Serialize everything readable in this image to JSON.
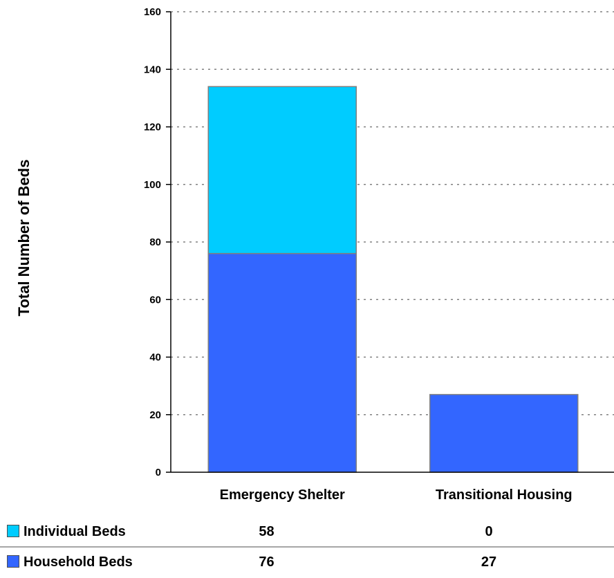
{
  "colors": {
    "individual": "#00ccff",
    "household": "#3366ff",
    "bar_stroke": "#7f7f7f",
    "grid": "#808080",
    "axis": "#000000"
  },
  "chart_data": {
    "type": "bar",
    "stacked": true,
    "categories": [
      "Emergency Shelter",
      "Transitional Housing"
    ],
    "series": [
      {
        "name": "Household Beds",
        "values": [
          76,
          27
        ]
      },
      {
        "name": "Individual Beds",
        "values": [
          58,
          0
        ]
      }
    ],
    "ylabel": "Total Number of Beds",
    "xlabel": "",
    "ylim": [
      0,
      160
    ],
    "yticks": [
      0,
      20,
      40,
      60,
      80,
      100,
      120,
      140,
      160
    ],
    "grid": true,
    "legend": "table-below"
  },
  "table": {
    "rows": [
      {
        "label": "Individual Beds",
        "swatch": "individual",
        "values": [
          "58",
          "0"
        ]
      },
      {
        "label": "Household Beds",
        "swatch": "household",
        "values": [
          "76",
          "27"
        ]
      }
    ]
  }
}
